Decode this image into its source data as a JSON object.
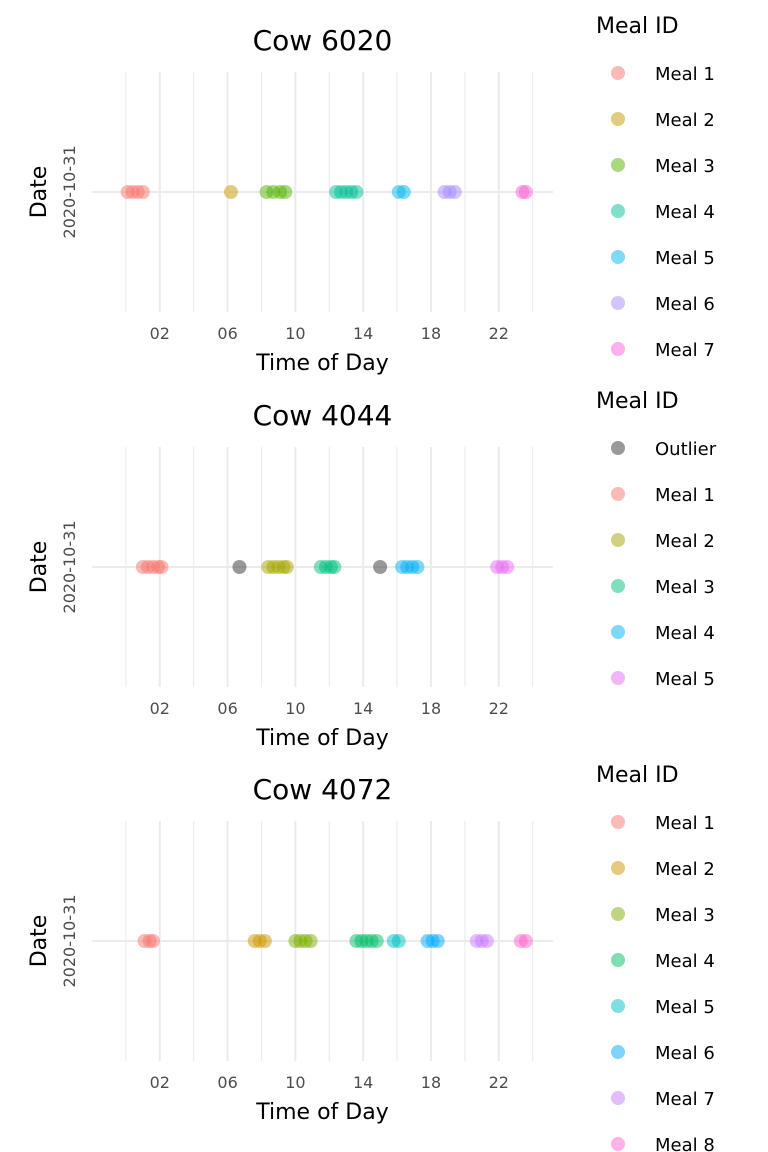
{
  "chart_data": [
    {
      "type": "scatter",
      "title": "Cow 6020",
      "xlabel": "Time of Day",
      "ylabel": "Date",
      "y_category": "2020-10-31",
      "xlim": [
        -2,
        25.2
      ],
      "x_ticks": [
        2,
        6,
        10,
        14,
        18,
        22
      ],
      "x_tick_labels": [
        "02",
        "06",
        "10",
        "14",
        "18",
        "22"
      ],
      "grid": true,
      "legend_title": "Meal ID",
      "legend_position": "right",
      "series": [
        {
          "name": "Meal 1",
          "color": "#F8766D",
          "x": [
            0.1,
            0.4,
            0.7,
            1.0
          ]
        },
        {
          "name": "Meal 2",
          "color": "#C49A00",
          "x": [
            6.2
          ]
        },
        {
          "name": "Meal 3",
          "color": "#53B400",
          "x": [
            8.3,
            8.7,
            9.1,
            9.4
          ]
        },
        {
          "name": "Meal 4",
          "color": "#00C094",
          "x": [
            12.4,
            12.7,
            13.0,
            13.3,
            13.6
          ]
        },
        {
          "name": "Meal 5",
          "color": "#00B6EB",
          "x": [
            16.1,
            16.4
          ]
        },
        {
          "name": "Meal 6",
          "color": "#A58AFF",
          "x": [
            18.8,
            19.1,
            19.4
          ]
        },
        {
          "name": "Meal 7",
          "color": "#FB61D7",
          "x": [
            23.4,
            23.6
          ]
        }
      ]
    },
    {
      "type": "scatter",
      "title": "Cow 4044",
      "xlabel": "Time of Day",
      "ylabel": "Date",
      "y_category": "2020-10-31",
      "xlim": [
        -2,
        25.2
      ],
      "x_ticks": [
        2,
        6,
        10,
        14,
        18,
        22
      ],
      "x_tick_labels": [
        "02",
        "06",
        "10",
        "14",
        "18",
        "22"
      ],
      "grid": true,
      "legend_title": "Meal ID",
      "legend_position": "right",
      "series": [
        {
          "name": "Outlier",
          "color": "#333333",
          "x": [
            6.7,
            15.0
          ]
        },
        {
          "name": "Meal 1",
          "color": "#F8766D",
          "x": [
            1.0,
            1.3,
            1.6,
            1.9,
            2.1
          ]
        },
        {
          "name": "Meal 2",
          "color": "#A3A500",
          "x": [
            8.4,
            8.7,
            9.0,
            9.3,
            9.5
          ]
        },
        {
          "name": "Meal 3",
          "color": "#00BF7D",
          "x": [
            11.5,
            11.8,
            12.1,
            12.3
          ]
        },
        {
          "name": "Meal 4",
          "color": "#00B0F6",
          "x": [
            16.3,
            16.6,
            16.9,
            17.2
          ]
        },
        {
          "name": "Meal 5",
          "color": "#E76BF3",
          "x": [
            21.9,
            22.2,
            22.5
          ]
        }
      ]
    },
    {
      "type": "scatter",
      "title": "Cow 4072",
      "xlabel": "Time of Day",
      "ylabel": "Date",
      "y_category": "2020-10-31",
      "xlim": [
        -2,
        25.2
      ],
      "x_ticks": [
        2,
        6,
        10,
        14,
        18,
        22
      ],
      "x_tick_labels": [
        "02",
        "06",
        "10",
        "14",
        "18",
        "22"
      ],
      "grid": true,
      "legend_title": "Meal ID",
      "legend_position": "right",
      "series": [
        {
          "name": "Meal 1",
          "color": "#F8766D",
          "x": [
            1.1,
            1.4,
            1.6
          ]
        },
        {
          "name": "Meal 2",
          "color": "#CD9600",
          "x": [
            7.6,
            7.9,
            8.2
          ]
        },
        {
          "name": "Meal 3",
          "color": "#7CAE00",
          "x": [
            10.0,
            10.3,
            10.6,
            10.9
          ]
        },
        {
          "name": "Meal 4",
          "color": "#00BE67",
          "x": [
            13.6,
            13.9,
            14.2,
            14.5,
            14.8
          ]
        },
        {
          "name": "Meal 5",
          "color": "#00BFC4",
          "x": [
            15.8,
            16.1
          ]
        },
        {
          "name": "Meal 6",
          "color": "#00A9FF",
          "x": [
            17.8,
            18.1,
            18.4
          ]
        },
        {
          "name": "Meal 7",
          "color": "#C77CFF",
          "x": [
            20.7,
            21.0,
            21.3
          ]
        },
        {
          "name": "Meal 8",
          "color": "#FF61CC",
          "x": [
            23.3,
            23.6
          ]
        }
      ]
    }
  ]
}
